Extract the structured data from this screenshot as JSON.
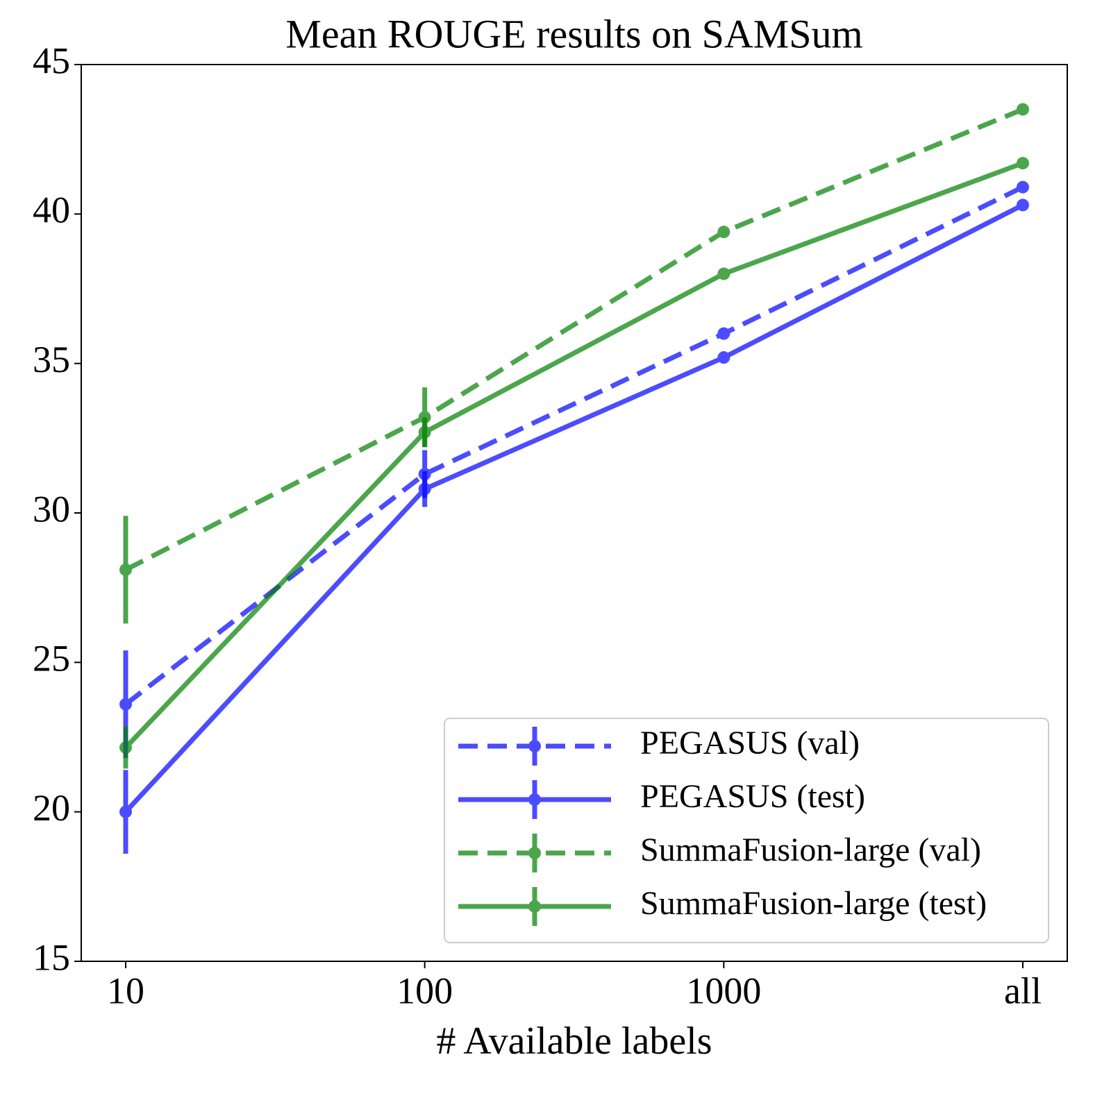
{
  "chart_data": {
    "type": "line",
    "title": "Mean ROUGE results on SAMSum",
    "x_label": "# Available labels",
    "categories": [
      "10",
      "100",
      "1000",
      "all"
    ],
    "series": [
      {
        "name": "PEGASUS (val)",
        "color": "#0000ff",
        "dash": true,
        "values": [
          23.6,
          31.3,
          36.0,
          40.9
        ],
        "errors": [
          1.8,
          0.8,
          0.2,
          0.1
        ]
      },
      {
        "name": "PEGASUS (test)",
        "color": "#0000ff",
        "dash": false,
        "values": [
          20.0,
          30.8,
          35.2,
          40.3
        ],
        "errors": [
          1.4,
          0.6,
          0.2,
          0.1
        ]
      },
      {
        "name": "SummaFusion-large (val)",
        "color": "#008000",
        "dash": true,
        "values": [
          28.1,
          33.2,
          39.4,
          43.5
        ],
        "errors": [
          1.8,
          1.0,
          0.1,
          0.1
        ]
      },
      {
        "name": "SummaFusion-large (test)",
        "color": "#008000",
        "dash": false,
        "values": [
          22.15,
          32.7,
          38.0,
          41.7
        ],
        "errors": [
          0.7,
          0.5,
          0.1,
          0.1
        ]
      }
    ],
    "ylim": [
      15,
      45
    ],
    "yticks": [
      15,
      20,
      25,
      30,
      35,
      40,
      45
    ],
    "legend": "lower right"
  }
}
